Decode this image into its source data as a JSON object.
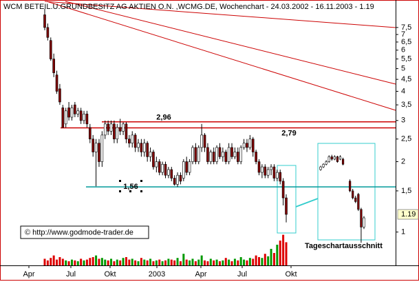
{
  "chart_data": {
    "type": "candlestick",
    "title": "WCM BETEIL.U.GRUNDBESITZ AG AKTIEN O.N. ,WCMG.DE, Wochenchart - 24.03.2002 - 16.11.2003 - 1.19",
    "log_scale": true,
    "ylim": [
      0.72,
      9.7
    ],
    "yticks": [
      1,
      {
        "value": 1.5,
        "label": "1,5"
      },
      2,
      {
        "value": 2.5,
        "label": "2,5"
      },
      3,
      {
        "value": 3.5,
        "label": "3,5"
      },
      4,
      {
        "value": 4.5,
        "label": "4,5"
      },
      5,
      {
        "value": 5.5,
        "label": "5,5"
      },
      6,
      {
        "value": 6.5,
        "label": "6,5"
      },
      7,
      {
        "value": 7.5,
        "label": "7,5"
      }
    ],
    "last_price": {
      "value": 1.19,
      "label": "1.19"
    },
    "x_labels": [
      "Apr",
      "Jul",
      "Okt",
      "2003",
      "Apr",
      "Jul",
      "Okt"
    ],
    "up_color": "#ffffff",
    "down_color": "#800000",
    "candles": [
      [
        8.5,
        9.0,
        7.3,
        7.5
      ],
      [
        7.5,
        7.8,
        6.6,
        6.8
      ],
      [
        6.6,
        6.8,
        5.4,
        5.5
      ],
      [
        5.5,
        5.8,
        4.6,
        4.8
      ],
      [
        4.7,
        4.9,
        3.9,
        4.0
      ],
      [
        4.1,
        4.3,
        3.5,
        3.6
      ],
      [
        3.4,
        3.5,
        2.8,
        2.8
      ],
      [
        2.9,
        3.4,
        2.8,
        3.3
      ],
      [
        3.4,
        3.6,
        3.0,
        3.1
      ],
      [
        3.1,
        3.5,
        3.0,
        3.4
      ],
      [
        3.5,
        3.6,
        3.1,
        3.2
      ],
      [
        3.2,
        3.4,
        3.1,
        3.3
      ],
      [
        3.3,
        3.4,
        2.9,
        3.0
      ],
      [
        3.0,
        3.3,
        2.9,
        3.2
      ],
      [
        3.2,
        3.3,
        2.8,
        2.9
      ],
      [
        2.8,
        2.9,
        2.4,
        2.5
      ],
      [
        2.5,
        2.6,
        2.1,
        2.2
      ],
      [
        2.2,
        2.5,
        1.57,
        2.4
      ],
      [
        2.4,
        2.5,
        1.9,
        2.0
      ],
      [
        2.0,
        2.7,
        1.9,
        2.6
      ],
      [
        2.6,
        3.0,
        2.5,
        2.9
      ],
      [
        2.9,
        3.0,
        2.6,
        2.7
      ],
      [
        2.7,
        3.0,
        2.6,
        2.9
      ],
      [
        2.9,
        3.0,
        2.4,
        2.5
      ],
      [
        2.5,
        2.9,
        2.4,
        2.8
      ],
      [
        2.8,
        3.05,
        2.6,
        2.7
      ],
      [
        2.7,
        2.95,
        2.6,
        2.9
      ],
      [
        2.9,
        2.95,
        2.4,
        2.5
      ],
      [
        2.5,
        2.6,
        2.3,
        2.4
      ],
      [
        2.4,
        2.7,
        2.3,
        2.6
      ],
      [
        2.6,
        2.65,
        2.2,
        2.3
      ],
      [
        2.3,
        2.5,
        2.2,
        2.4
      ],
      [
        2.4,
        2.5,
        2.1,
        2.2
      ],
      [
        2.2,
        2.5,
        2.1,
        2.4
      ],
      [
        2.4,
        2.45,
        2.0,
        2.1
      ],
      [
        2.1,
        2.3,
        2.0,
        2.2
      ],
      [
        2.2,
        2.25,
        1.85,
        1.9
      ],
      [
        1.9,
        2.1,
        1.8,
        2.0
      ],
      [
        2.0,
        2.05,
        1.75,
        1.8
      ],
      [
        1.8,
        2.0,
        1.75,
        1.95
      ],
      [
        1.95,
        2.0,
        1.7,
        1.75
      ],
      [
        1.75,
        1.9,
        1.7,
        1.85
      ],
      [
        1.85,
        1.9,
        1.65,
        1.7
      ],
      [
        1.7,
        1.75,
        1.58,
        1.6
      ],
      [
        1.6,
        1.8,
        1.56,
        1.75
      ],
      [
        1.75,
        1.8,
        1.6,
        1.65
      ],
      [
        1.7,
        2.05,
        1.65,
        2.0
      ],
      [
        2.0,
        2.1,
        1.75,
        1.8
      ],
      [
        1.8,
        2.05,
        1.75,
        2.0
      ],
      [
        2.0,
        2.35,
        1.95,
        2.3
      ],
      [
        2.3,
        2.4,
        1.95,
        2.0
      ],
      [
        2.0,
        2.35,
        1.95,
        2.3
      ],
      [
        2.3,
        2.9,
        2.2,
        2.6
      ],
      [
        2.6,
        2.65,
        2.2,
        2.3
      ],
      [
        2.3,
        2.4,
        1.95,
        2.0
      ],
      [
        2.0,
        2.25,
        1.95,
        2.2
      ],
      [
        2.2,
        2.3,
        1.95,
        2.0
      ],
      [
        2.0,
        2.35,
        1.95,
        2.3
      ],
      [
        2.3,
        2.4,
        2.05,
        2.1
      ],
      [
        2.1,
        2.3,
        2.0,
        2.2
      ],
      [
        2.2,
        2.25,
        1.95,
        2.0
      ],
      [
        2.0,
        2.4,
        1.95,
        2.3
      ],
      [
        2.3,
        2.4,
        2.05,
        2.1
      ],
      [
        2.1,
        2.3,
        2.05,
        2.2
      ],
      [
        2.2,
        2.3,
        1.95,
        2.0
      ],
      [
        2.0,
        2.35,
        1.95,
        2.3
      ],
      [
        2.3,
        2.5,
        2.25,
        2.4
      ],
      [
        2.4,
        2.5,
        2.2,
        2.3
      ],
      [
        2.3,
        2.6,
        2.25,
        2.5
      ],
      [
        2.5,
        2.55,
        2.1,
        2.2
      ],
      [
        2.2,
        2.25,
        1.95,
        2.0
      ],
      [
        2.0,
        2.05,
        1.75,
        1.8
      ],
      [
        1.8,
        1.95,
        1.7,
        1.9
      ],
      [
        1.9,
        1.95,
        1.7,
        1.75
      ],
      [
        1.75,
        1.9,
        1.7,
        1.85
      ],
      [
        1.85,
        1.95,
        1.75,
        1.9
      ],
      [
        1.9,
        1.95,
        1.65,
        1.7
      ],
      [
        1.7,
        1.85,
        1.65,
        1.8
      ],
      [
        1.8,
        1.85,
        1.6,
        1.65
      ],
      [
        1.65,
        1.7,
        1.3,
        1.4
      ],
      [
        1.4,
        1.45,
        1.1,
        1.19
      ]
    ],
    "volume": {
      "ylim": [
        0,
        100
      ],
      "up_color": "#009900",
      "down_color": "#dd0000",
      "values": [
        8,
        6,
        9,
        12,
        7,
        10,
        8,
        6,
        5,
        7,
        6,
        5,
        8,
        6,
        7,
        9,
        10,
        12,
        8,
        9,
        7,
        6,
        8,
        5,
        7,
        6,
        9,
        10,
        7,
        8,
        6,
        5,
        9,
        7,
        6,
        8,
        5,
        6,
        7,
        5,
        6,
        8,
        7,
        6,
        9,
        5,
        14,
        7,
        6,
        8,
        5,
        7,
        12,
        6,
        5,
        8,
        6,
        7,
        5,
        6,
        9,
        7,
        5,
        8,
        6,
        10,
        7,
        6,
        9,
        8,
        12,
        10,
        9,
        14,
        11,
        20,
        15,
        25,
        30,
        37,
        28
      ]
    },
    "levels": [
      {
        "value": 2.96,
        "label": "2,96"
      },
      {
        "value": 2.79,
        "label": "2,79"
      },
      {
        "value": 1.56,
        "label": "1,56"
      }
    ],
    "level_colors": [
      "#cc0000",
      "#cc0000",
      "#009999"
    ],
    "copyright": "© http://www.godmode-trader.de",
    "inset": {
      "label": "Tageschartausschnitt",
      "candles": [
        [
          1.85,
          1.92,
          1.83,
          1.9
        ],
        [
          1.9,
          1.97,
          1.88,
          1.95
        ],
        [
          1.95,
          2.03,
          1.93,
          2.0
        ],
        [
          2.0,
          2.13,
          1.98,
          2.1
        ],
        [
          2.1,
          2.14,
          2.02,
          2.05
        ],
        [
          2.05,
          2.13,
          2.03,
          2.1
        ],
        [
          2.1,
          2.12,
          1.98,
          2.0
        ],
        [
          2.05,
          2.13,
          2.03,
          2.1
        ],
        [
          2.05,
          2.08,
          1.93,
          1.95
        ],
        [
          1.65,
          1.68,
          1.48,
          1.5
        ],
        [
          1.5,
          1.53,
          1.38,
          1.4
        ],
        [
          1.4,
          1.43,
          1.33,
          1.35
        ],
        [
          1.45,
          1.47,
          1.23,
          1.25
        ],
        [
          1.25,
          1.27,
          0.9,
          1.05
        ],
        [
          1.05,
          1.17,
          1.03,
          1.15
        ]
      ]
    }
  }
}
